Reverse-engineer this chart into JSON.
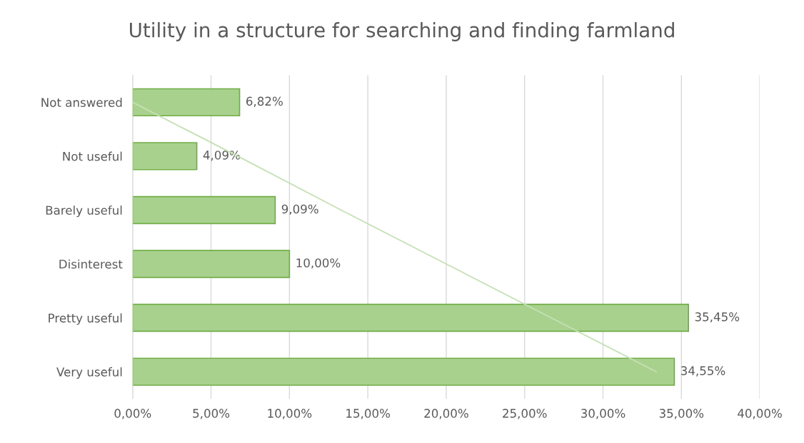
{
  "chart_data": {
    "type": "bar",
    "orientation": "horizontal",
    "title": "Utility in a structure for searching and finding farmland",
    "categories": [
      "Not answered",
      "Not useful",
      "Barely useful",
      "Disinterest",
      "Pretty useful",
      "Very useful"
    ],
    "series": [
      {
        "color": "#a9d18e",
        "values": [
          6.82,
          4.09,
          9.09,
          10.0,
          35.45,
          34.55
        ],
        "value_labels": [
          "6,82%",
          "4,09%",
          "9,09%",
          "10,00%",
          "35,45%",
          "34,55%"
        ]
      },
      {
        "type": "line",
        "color": "#c5e0b4",
        "values": [
          0.0,
          6.7,
          13.3,
          20.0,
          26.7,
          33.4
        ]
      }
    ],
    "xlim": [
      0,
      40
    ],
    "xticks": [
      {
        "value": 0,
        "label": "0,00%"
      },
      {
        "value": 5,
        "label": "5,00%"
      },
      {
        "value": 10,
        "label": "10,00%"
      },
      {
        "value": 15,
        "label": "15,00%"
      },
      {
        "value": 20,
        "label": "20,00%"
      },
      {
        "value": 25,
        "label": "25,00%"
      },
      {
        "value": 30,
        "label": "30,00%"
      },
      {
        "value": 35,
        "label": "35,00%"
      },
      {
        "value": 40,
        "label": "40,00%"
      }
    ],
    "grid": "x"
  }
}
